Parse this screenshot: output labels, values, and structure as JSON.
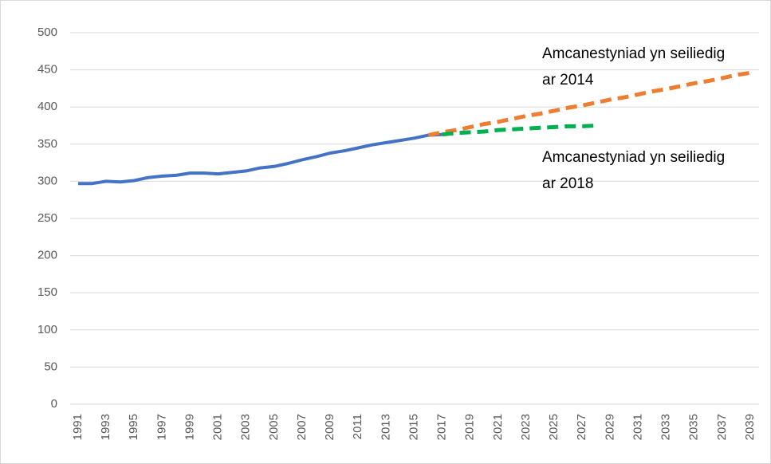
{
  "chart_data": {
    "type": "line",
    "categories": [
      "1991",
      null,
      "1993",
      null,
      "1995",
      null,
      "1997",
      null,
      "1999",
      null,
      "2001",
      null,
      "2003",
      null,
      "2005",
      null,
      "2007",
      null,
      "2009",
      null,
      "2011",
      null,
      "2013",
      null,
      "2015",
      null,
      "2017",
      null,
      "2019",
      null,
      "2021",
      null,
      "2023",
      null,
      "2025",
      null,
      "2027",
      null,
      "2029",
      null,
      "2031",
      null,
      "2033",
      null,
      "2035",
      null,
      "2037",
      null,
      "2039"
    ],
    "series": [
      {
        "color": "#4472c4",
        "dashed": false,
        "values": [
          297,
          297,
          300,
          299,
          301,
          305,
          307,
          308,
          311,
          311,
          310,
          312,
          314,
          318,
          320,
          324,
          329,
          333,
          338,
          341,
          345,
          349,
          352,
          355,
          358,
          362,
          363,
          null,
          null,
          null,
          null,
          null,
          null,
          null,
          null,
          null,
          null,
          null,
          null,
          null,
          null,
          null,
          null,
          null,
          null,
          null,
          null,
          null,
          null
        ]
      },
      {
        "color": "#ed7d31",
        "dashed": true,
        "values": [
          null,
          null,
          null,
          null,
          null,
          null,
          null,
          null,
          null,
          null,
          null,
          null,
          null,
          null,
          null,
          null,
          null,
          null,
          null,
          null,
          null,
          null,
          null,
          null,
          null,
          362,
          366,
          369,
          373,
          377,
          380,
          384,
          388,
          391,
          395,
          399,
          402,
          406,
          410,
          413,
          417,
          421,
          424,
          428,
          432,
          435,
          439,
          443,
          446
        ]
      },
      {
        "color": "#00b050",
        "dashed": true,
        "values": [
          null,
          null,
          null,
          null,
          null,
          null,
          null,
          null,
          null,
          null,
          null,
          null,
          null,
          null,
          null,
          null,
          null,
          null,
          null,
          null,
          null,
          null,
          null,
          null,
          null,
          null,
          363,
          365,
          366,
          367,
          369,
          370,
          371,
          372,
          373,
          374,
          374,
          375,
          null,
          null,
          null,
          null,
          null,
          null,
          null,
          null,
          null,
          null,
          null
        ]
      }
    ],
    "annotations": [
      {
        "text": [
          "Amcanestyniad yn seiliedig",
          "ar 2014"
        ]
      },
      {
        "text": [
          "Amcanestyniad yn seiliedig",
          "ar 2018"
        ]
      }
    ],
    "ylim": [
      0,
      500
    ],
    "yticks": [
      0,
      50,
      100,
      150,
      200,
      250,
      300,
      350,
      400,
      450,
      500
    ],
    "grid": true
  }
}
